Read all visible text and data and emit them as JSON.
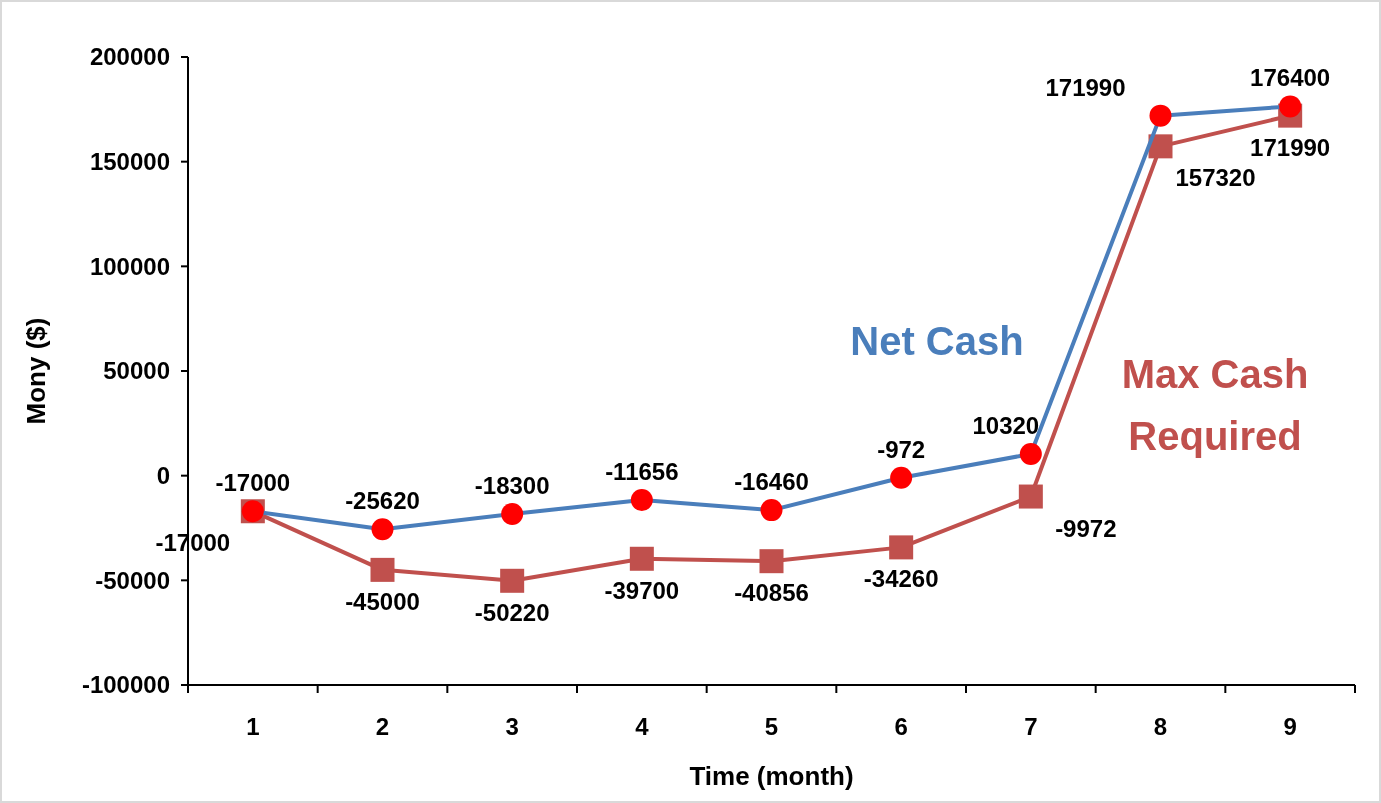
{
  "chart_data": {
    "type": "line",
    "xlabel": "Time (month)",
    "ylabel": "Mony ($)",
    "categories": [
      "1",
      "2",
      "3",
      "4",
      "5",
      "6",
      "7",
      "8",
      "9"
    ],
    "series": [
      {
        "name": "Net Cash",
        "color": "#4a7ebb",
        "marker": "circle",
        "colors": [
          "#ff0000",
          "#ff0000",
          "#ff0000",
          "#ff0000",
          "#ff0000",
          "#ff0000",
          "#ff0000",
          "#ff0000",
          "#ff0000"
        ],
        "values": [
          -17000,
          -25620,
          -18300,
          -11656,
          -16460,
          -972,
          10320,
          171990,
          176400
        ]
      },
      {
        "name": "Max Cash Required",
        "color": "#c0504d",
        "marker": "square",
        "values": [
          -17000,
          -45000,
          -50220,
          -39700,
          -40856,
          -34260,
          -9972,
          157320,
          171990
        ]
      }
    ],
    "ylim": [
      -100000,
      200000
    ],
    "yticks": [
      -100000,
      -50000,
      0,
      50000,
      100000,
      150000,
      200000
    ],
    "grid": false,
    "data_labels": true
  }
}
